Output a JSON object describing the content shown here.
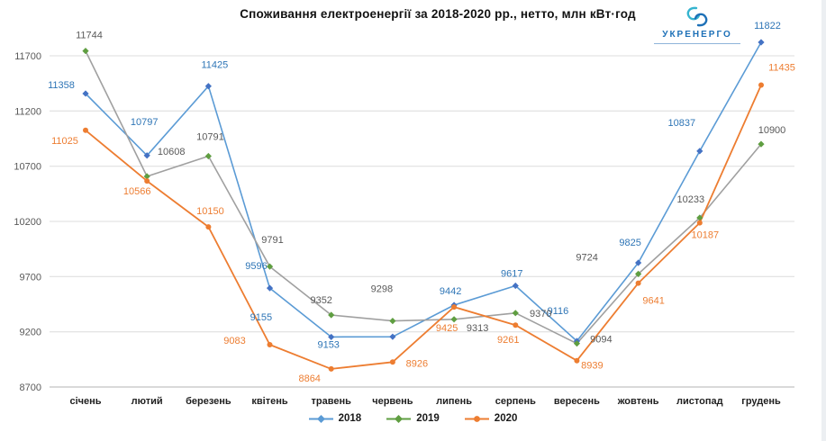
{
  "logo": {
    "text": "УКРЕНЕРГО",
    "primary_color": "#1d70b7",
    "accent_color": "#35b4cf"
  },
  "chart_data": {
    "type": "line",
    "title": "Споживання електроенергії за 2018-2020 рр., нетто, млн кВт·год",
    "xlabel": "",
    "ylabel": "",
    "categories": [
      "січень",
      "лютий",
      "березень",
      "квітень",
      "травень",
      "червень",
      "липень",
      "серпень",
      "вересень",
      "жовтень",
      "листопад",
      "грудень"
    ],
    "y_ticks": [
      11700,
      11200,
      10700,
      10200,
      9700,
      9200,
      8700
    ],
    "ylim": [
      8700,
      11700
    ],
    "grid": true,
    "legend_position": "bottom",
    "series": [
      {
        "name": "2018",
        "line_color": "#5B9BD5",
        "marker_color": "#4472c4",
        "label_color": "#2e75b6",
        "legend_color": "#5B9BD5",
        "marker": "diamond",
        "values": [
          11358,
          10797,
          11425,
          9596,
          9153,
          9155,
          9442,
          9617,
          9116,
          9825,
          10837,
          11822
        ]
      },
      {
        "name": "2019",
        "line_color": "#a0a0a0",
        "marker_color": "#5f9e41",
        "label_color": "#595959",
        "legend_color": "#5f9e41",
        "marker": "diamond",
        "values": [
          11744,
          10608,
          10791,
          9791,
          9352,
          9298,
          9313,
          9370,
          9094,
          9724,
          10233,
          10900
        ]
      },
      {
        "name": "2020",
        "line_color": "#ED7D31",
        "marker_color": "#ED7D31",
        "label_color": "#ED7D31",
        "legend_color": "#ED7D31",
        "marker": "circle",
        "values": [
          11025,
          10566,
          10150,
          9083,
          8864,
          8926,
          9425,
          9261,
          8939,
          9641,
          10187,
          11435
        ]
      }
    ]
  }
}
